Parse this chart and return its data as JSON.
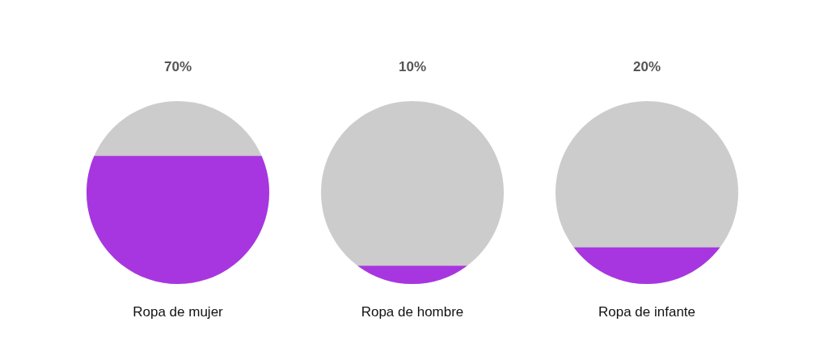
{
  "chart_data": {
    "type": "other",
    "categories": [
      "Ropa de mujer",
      "Ropa de hombre",
      "Ropa de infante"
    ],
    "values": [
      70,
      10,
      20
    ],
    "value_labels": [
      "70%",
      "10%",
      "20%"
    ],
    "color": "#a836e0"
  }
}
